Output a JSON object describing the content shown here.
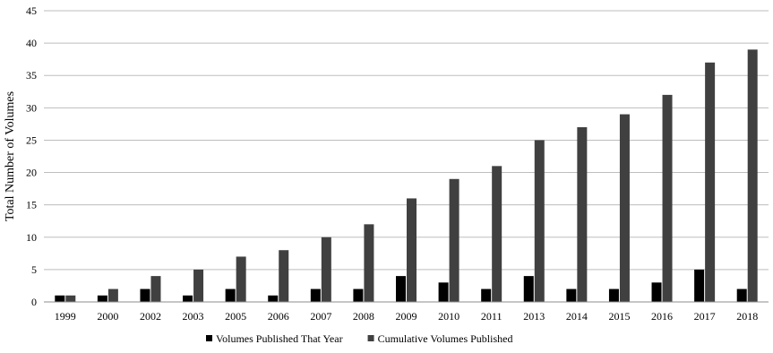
{
  "chart_data": {
    "type": "bar",
    "title": "",
    "xlabel": "",
    "ylabel": "Total Number of Volumes",
    "ylim": [
      0,
      45
    ],
    "yticks": [
      0,
      5,
      10,
      15,
      20,
      25,
      30,
      35,
      40,
      45
    ],
    "grid": "horizontal",
    "legend_position": "bottom",
    "categories": [
      "1999",
      "2000",
      "2002",
      "2003",
      "2005",
      "2006",
      "2007",
      "2008",
      "2009",
      "2010",
      "2011",
      "2013",
      "2014",
      "2015",
      "2016",
      "2017",
      "2018"
    ],
    "series": [
      {
        "name": "Volumes Published That Year",
        "color": "#000000",
        "values": [
          1,
          1,
          2,
          1,
          2,
          1,
          2,
          2,
          4,
          3,
          2,
          4,
          2,
          2,
          3,
          5,
          2
        ]
      },
      {
        "name": "Cumulative Volumes Published",
        "color": "#404040",
        "values": [
          1,
          2,
          4,
          5,
          7,
          8,
          10,
          12,
          16,
          19,
          21,
          25,
          27,
          29,
          32,
          37,
          39
        ]
      }
    ]
  }
}
